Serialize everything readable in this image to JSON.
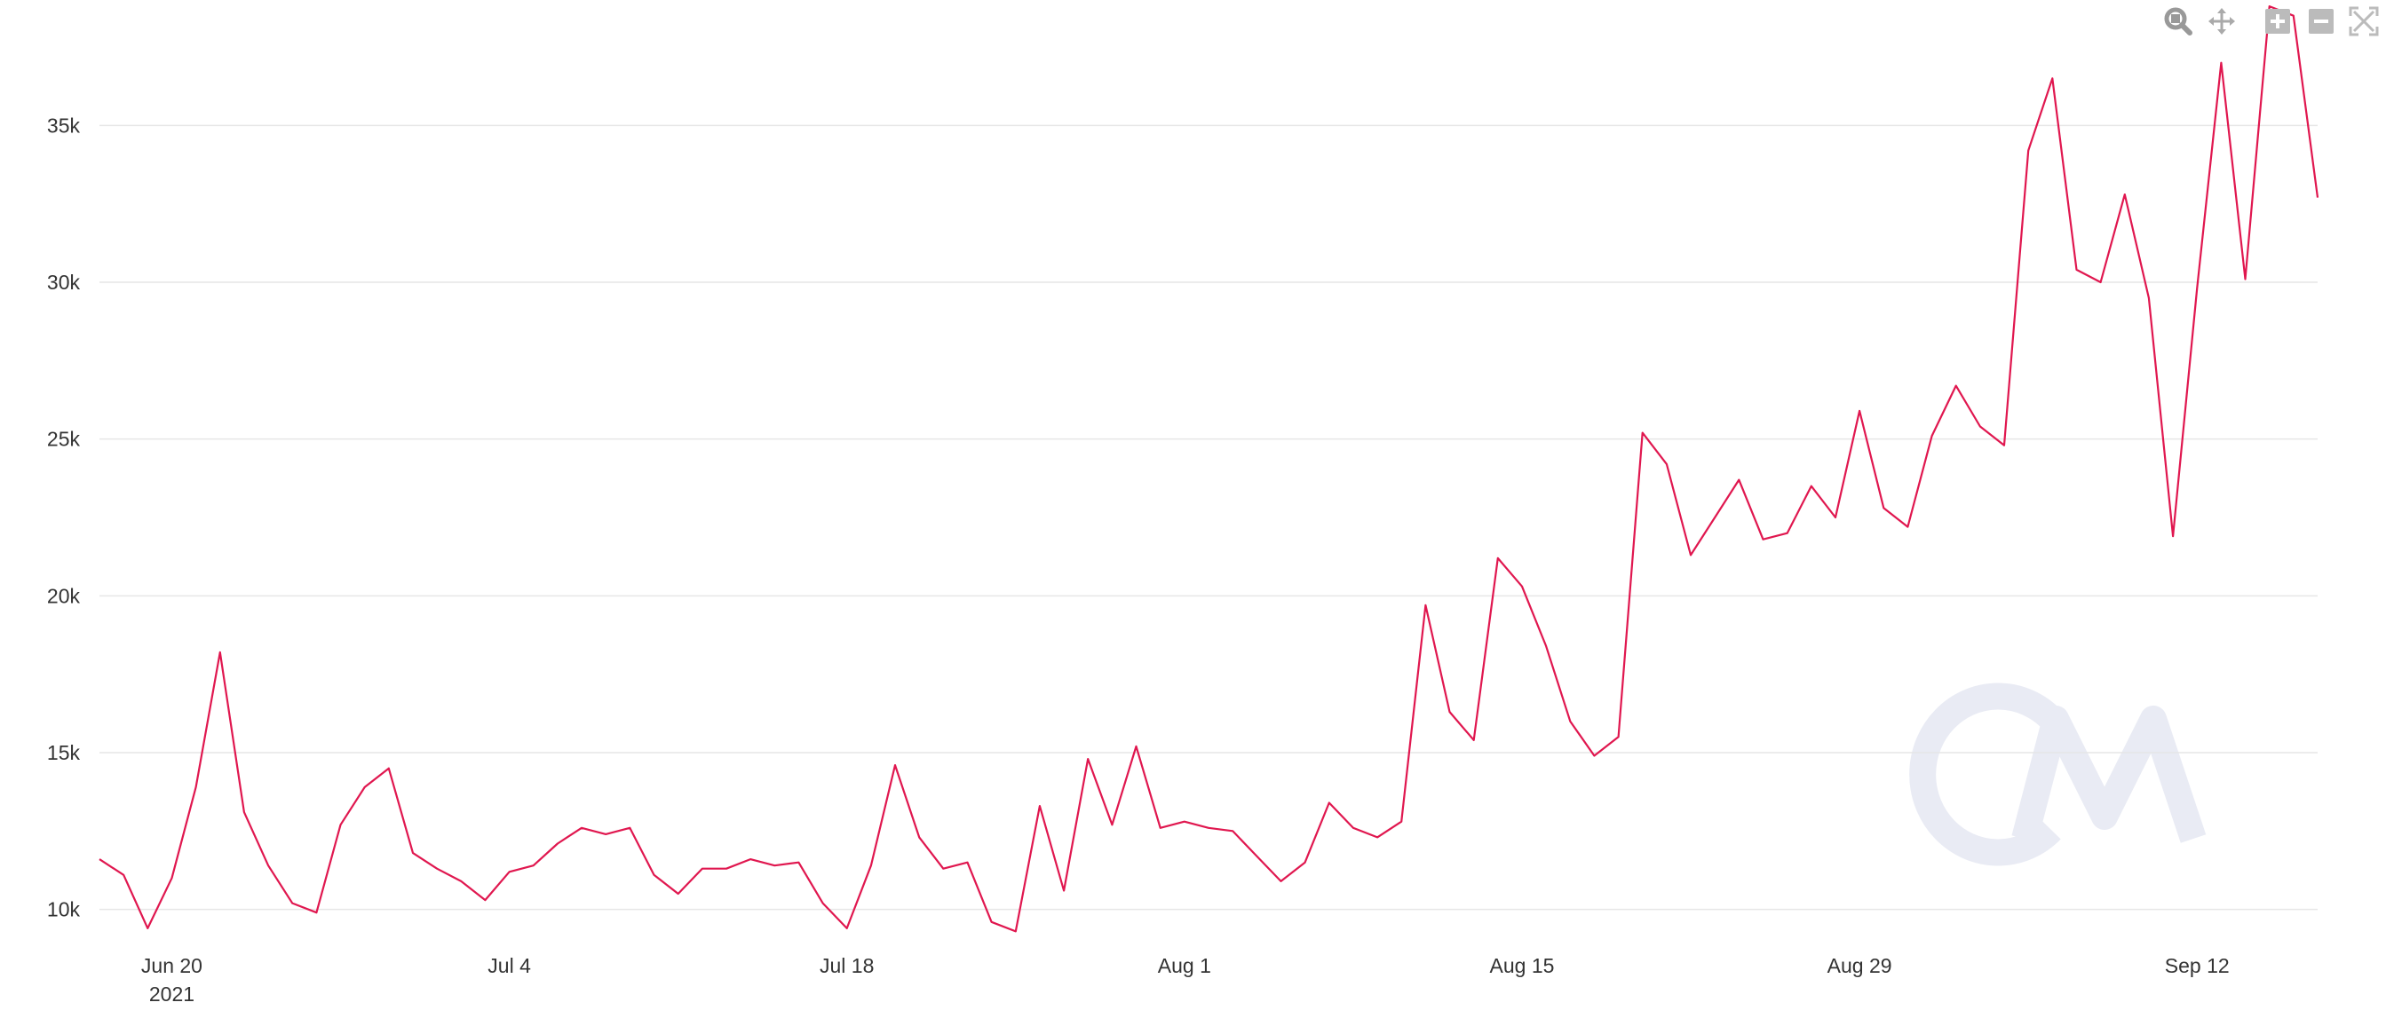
{
  "chart_data": {
    "type": "line",
    "title": "",
    "xlabel": "",
    "ylabel": "",
    "start_date": "2021-06-17",
    "x_range": [
      "2021-06-17",
      "2021-09-17"
    ],
    "ylim": [
      9000,
      39000
    ],
    "y_ticks": [
      10000,
      15000,
      20000,
      25000,
      30000,
      35000
    ],
    "y_tick_labels": [
      "10k",
      "15k",
      "20k",
      "25k",
      "30k",
      "35k"
    ],
    "x_ticks": [
      {
        "date": "2021-06-20",
        "label": "Jun 20",
        "sublabel": "2021"
      },
      {
        "date": "2021-07-04",
        "label": "Jul 4",
        "sublabel": ""
      },
      {
        "date": "2021-07-18",
        "label": "Jul 18",
        "sublabel": ""
      },
      {
        "date": "2021-08-01",
        "label": "Aug 1",
        "sublabel": ""
      },
      {
        "date": "2021-08-15",
        "label": "Aug 15",
        "sublabel": ""
      },
      {
        "date": "2021-08-29",
        "label": "Aug 29",
        "sublabel": ""
      },
      {
        "date": "2021-09-12",
        "label": "Sep 12",
        "sublabel": ""
      }
    ],
    "grid": true,
    "legend": "none",
    "series": [
      {
        "name": "",
        "color": "#e0174f",
        "values": [
          11600,
          11100,
          9400,
          11000,
          13900,
          18200,
          13100,
          11400,
          10200,
          9900,
          12700,
          13900,
          14500,
          11800,
          11300,
          10900,
          10300,
          11200,
          11400,
          12100,
          12600,
          12400,
          12600,
          11100,
          10500,
          11300,
          11300,
          11600,
          11400,
          11500,
          10200,
          9400,
          11400,
          14600,
          12300,
          11300,
          11500,
          9600,
          9300,
          13300,
          10600,
          14800,
          12700,
          15200,
          12600,
          12800,
          12600,
          12500,
          11700,
          10900,
          11500,
          13400,
          12600,
          12300,
          12800,
          19700,
          16300,
          15400,
          21200,
          20300,
          18400,
          16000,
          14900,
          15500,
          25200,
          24200,
          21300,
          22500,
          23700,
          21800,
          22000,
          23500,
          22500,
          25900,
          22800,
          22200,
          25100,
          26700,
          25400,
          24800,
          34200,
          36500,
          30400,
          30000,
          32800,
          29500,
          21900,
          29800,
          37000,
          30100,
          38800,
          38500,
          32700
        ]
      }
    ]
  },
  "watermark": {
    "text": "CM",
    "color": "#e9ebf4"
  },
  "toolbar": {
    "color": "#999999",
    "buttons": [
      {
        "name": "zoom-select",
        "icon": "magnifier-icon"
      },
      {
        "name": "pan",
        "icon": "pan-arrows-icon"
      },
      {
        "name": "zoom-in",
        "icon": "plus-box-icon"
      },
      {
        "name": "zoom-out",
        "icon": "minus-box-icon"
      },
      {
        "name": "reset-axes",
        "icon": "expand-icon"
      }
    ]
  }
}
